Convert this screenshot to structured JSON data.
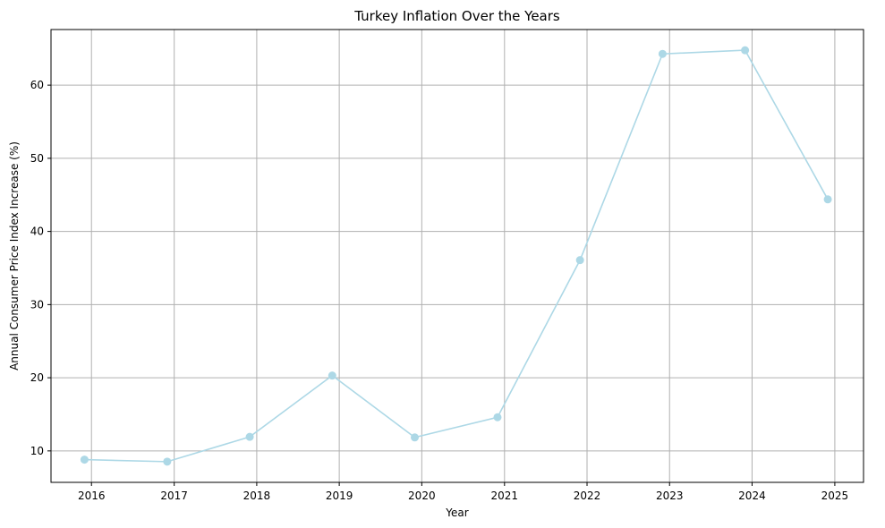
{
  "chart_data": {
    "type": "line",
    "title": "Turkey Inflation Over the Years",
    "xlabel": "Year",
    "ylabel": "Annual Consumer Price Index Increase (%)",
    "x_ticks": [
      "2016",
      "2017",
      "2018",
      "2019",
      "2020",
      "2021",
      "2022",
      "2023",
      "2024",
      "2025"
    ],
    "y_ticks": [
      10,
      20,
      30,
      40,
      50,
      60
    ],
    "xlim": [
      "2015-07-06",
      "2025-05-08"
    ],
    "ylim": [
      5.7,
      67.6
    ],
    "grid": true,
    "legend": false,
    "series": [
      {
        "color": "#add8e6",
        "marker": "circle",
        "x": [
          "2015-12-01",
          "2016-12-01",
          "2017-12-01",
          "2018-12-01",
          "2019-12-01",
          "2020-12-01",
          "2021-12-01",
          "2022-12-01",
          "2023-12-01",
          "2024-12-01"
        ],
        "values": [
          8.81,
          8.53,
          11.92,
          20.3,
          11.84,
          14.6,
          36.08,
          64.27,
          64.77,
          44.38
        ]
      }
    ]
  }
}
